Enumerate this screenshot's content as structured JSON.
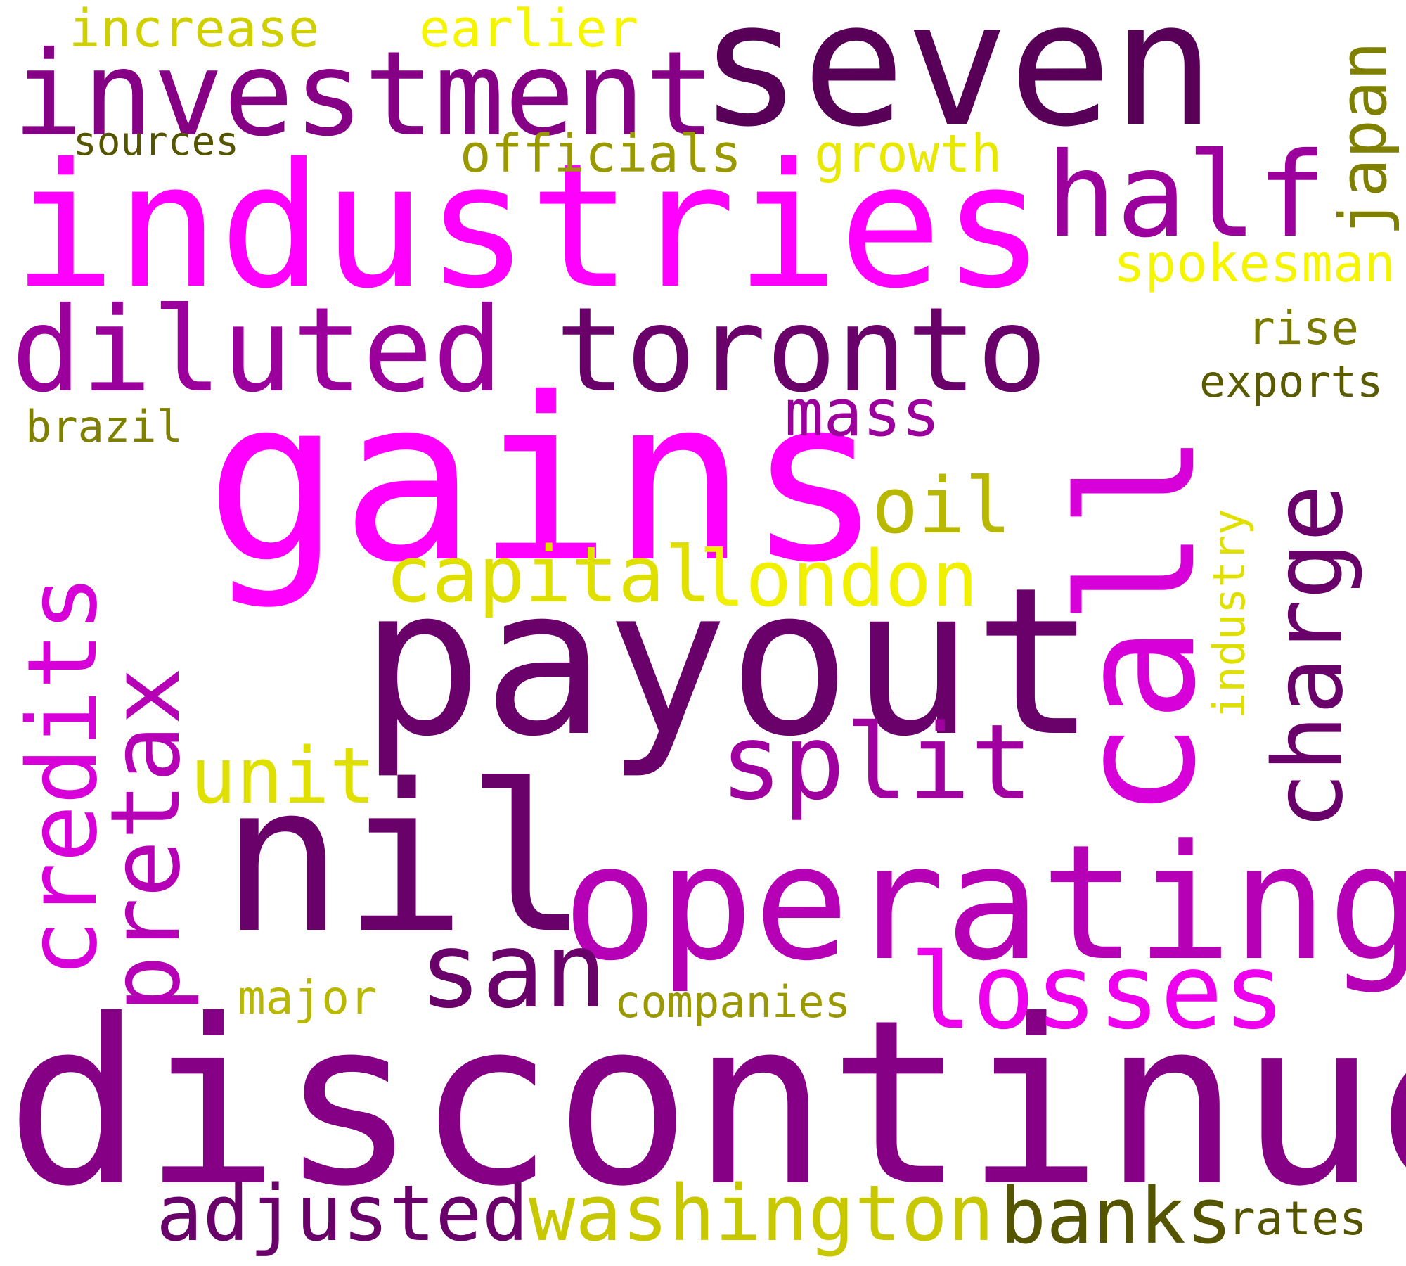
{
  "words": [
    {
      "key": "discontinued",
      "text": "discontinued",
      "color": "#850085"
    },
    {
      "key": "payout",
      "text": "payout",
      "color": "#6a006a"
    },
    {
      "key": "gains",
      "text": "gains",
      "color": "#ff00ff"
    },
    {
      "key": "industries",
      "text": "industries",
      "color": "#ff00ff"
    },
    {
      "key": "call",
      "text": "call",
      "color": "#d800d8"
    },
    {
      "key": "nil",
      "text": "nil",
      "color": "#6a006a"
    },
    {
      "key": "operating",
      "text": "operating",
      "color": "#b600b6"
    },
    {
      "key": "seven",
      "text": "seven",
      "color": "#580058"
    },
    {
      "key": "investment",
      "text": "investment",
      "color": "#850085"
    },
    {
      "key": "diluted",
      "text": "diluted",
      "color": "#9c009c"
    },
    {
      "key": "toronto",
      "text": "toronto",
      "color": "#6a006a"
    },
    {
      "key": "credits",
      "text": "credits",
      "color": "#d800d8"
    },
    {
      "key": "pretax",
      "text": "pretax",
      "color": "#b600b6"
    },
    {
      "key": "charge",
      "text": "charge",
      "color": "#6a006a"
    },
    {
      "key": "half",
      "text": "half",
      "color": "#9c009c"
    },
    {
      "key": "split",
      "text": "split",
      "color": "#a000a0"
    },
    {
      "key": "losses",
      "text": "losses",
      "color": "#ee00ee"
    },
    {
      "key": "san",
      "text": "san",
      "color": "#6a006a"
    },
    {
      "key": "adjusted",
      "text": "adjusted",
      "color": "#6a006a"
    },
    {
      "key": "washington",
      "text": "washington",
      "color": "#c8c800"
    },
    {
      "key": "banks",
      "text": "banks",
      "color": "#555500"
    },
    {
      "key": "london",
      "text": "london",
      "color": "#f0f000"
    },
    {
      "key": "capital",
      "text": "capital",
      "color": "#e0e000"
    },
    {
      "key": "unit",
      "text": "unit",
      "color": "#e0e000"
    },
    {
      "key": "mass",
      "text": "mass",
      "color": "#9c009c"
    },
    {
      "key": "oil",
      "text": "oil",
      "color": "#b8b800"
    },
    {
      "key": "japan",
      "text": "japan",
      "color": "#808000"
    },
    {
      "key": "spokesman",
      "text": "spokesman",
      "color": "#f5f500"
    },
    {
      "key": "growth",
      "text": "growth",
      "color": "#e8e800"
    },
    {
      "key": "officials",
      "text": "officials",
      "color": "#9a9a00"
    },
    {
      "key": "earlier",
      "text": "earlier",
      "color": "#f5f500"
    },
    {
      "key": "increase",
      "text": "increase",
      "color": "#d0d000"
    },
    {
      "key": "sources",
      "text": "sources",
      "color": "#555500"
    },
    {
      "key": "rise",
      "text": "rise",
      "color": "#7a7a00"
    },
    {
      "key": "exports",
      "text": "exports",
      "color": "#5a5a00"
    },
    {
      "key": "brazil",
      "text": "brazil",
      "color": "#808000"
    },
    {
      "key": "industry",
      "text": "industry",
      "color": "#e0e000"
    },
    {
      "key": "major",
      "text": "major",
      "color": "#b8b800"
    },
    {
      "key": "companies",
      "text": "companies",
      "color": "#9a9a00"
    },
    {
      "key": "rates",
      "text": "rates",
      "color": "#555500"
    }
  ]
}
